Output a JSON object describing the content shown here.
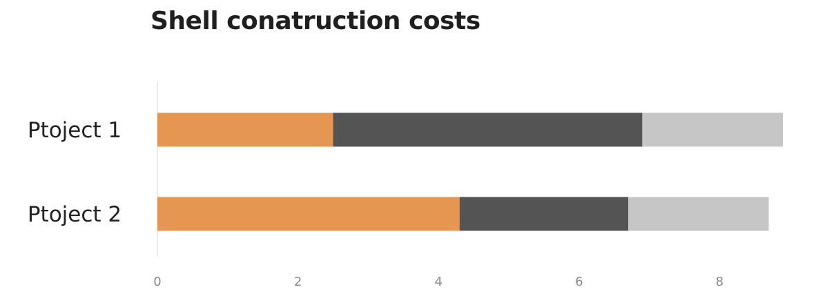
{
  "chart_data": {
    "type": "bar",
    "orientation": "horizontal",
    "stacked": true,
    "title": "Shell conatruction costs",
    "categories": [
      "Ptoject 1",
      "Ptoject 2"
    ],
    "series": [
      {
        "values": [
          2.5,
          4.3
        ],
        "color": "#E59751"
      },
      {
        "values": [
          4.4,
          2.4
        ],
        "color": "#535453"
      },
      {
        "values": [
          2.0,
          2.0
        ],
        "color": "#C6C6C6"
      }
    ],
    "xlim": [
      0,
      8.9
    ],
    "xticks": [
      0,
      2,
      4,
      6,
      8
    ],
    "xlabel": "",
    "ylabel": "",
    "grid": false,
    "legend": "none"
  }
}
